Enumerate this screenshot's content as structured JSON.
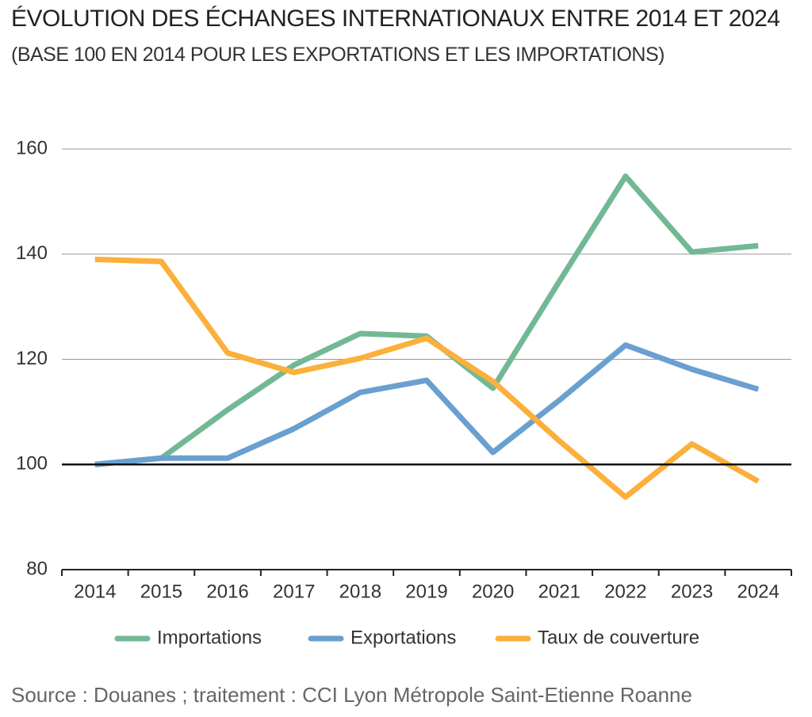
{
  "chart_data": {
    "type": "line",
    "title": "ÉVOLUTION DES ÉCHANGES INTERNATIONAUX ENTRE 2014 ET 2024",
    "subtitle": "(BASE 100 EN 2014 POUR LES EXPORTATIONS ET LES IMPORTATIONS)",
    "categories": [
      "2014",
      "2015",
      "2016",
      "2017",
      "2018",
      "2019",
      "2020",
      "2021",
      "2022",
      "2023",
      "2024"
    ],
    "series": [
      {
        "name": "Importations",
        "color": "#72b894",
        "values": [
          100,
          101.2,
          110.4,
          118.9,
          124.9,
          124.4,
          114.5,
          134.8,
          154.8,
          140.4,
          141.6
        ]
      },
      {
        "name": "Exportations",
        "color": "#6a9fd0",
        "values": [
          100,
          101.2,
          101.2,
          106.8,
          113.7,
          116,
          102.3,
          112.2,
          122.7,
          118.1,
          114.3
        ]
      },
      {
        "name": "Taux de couverture",
        "color": "#fbb03b",
        "values": [
          139,
          138.6,
          121.2,
          117.5,
          120.2,
          124,
          115.8,
          104.5,
          93.8,
          103.9,
          96.8
        ]
      }
    ],
    "ylim": [
      80,
      160
    ],
    "yticks": [
      80,
      100,
      120,
      140,
      160
    ],
    "grid": true,
    "reference_line": 100,
    "legend": "bottom",
    "source": "Source : Douanes ; traitement : CCI Lyon Métropole Saint-Etienne Roanne"
  }
}
